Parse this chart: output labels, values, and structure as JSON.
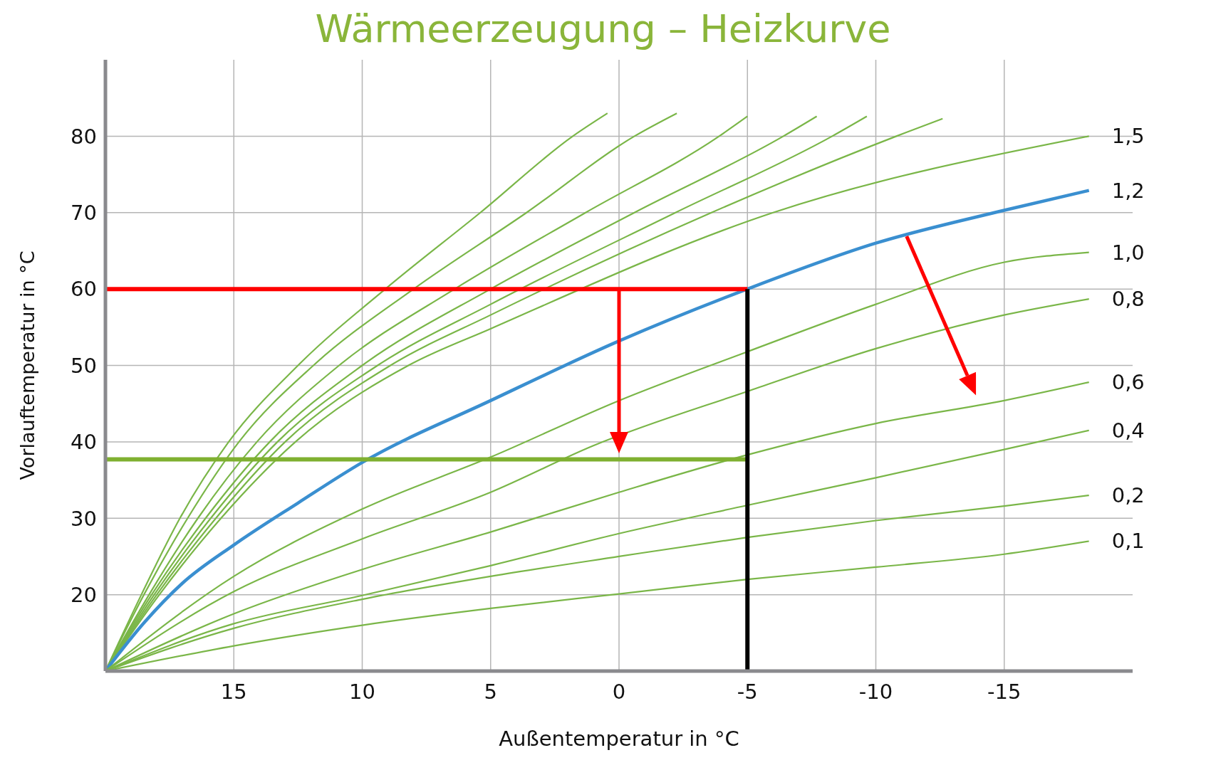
{
  "chart_data": {
    "type": "line",
    "title": "Wärmeerzeugung – Heizkurve",
    "xlabel": "Außentemperatur in °C",
    "ylabel": "Vorlauftemperatur in °C",
    "xlim": [
      20,
      -20
    ],
    "xticks": [
      15,
      10,
      5,
      0,
      -5,
      -10,
      -15
    ],
    "ylim": [
      10,
      90
    ],
    "yticks": [
      20,
      30,
      40,
      50,
      60,
      70,
      80
    ],
    "grid": true,
    "marker": "none",
    "line_style": "solid",
    "series": [
      {
        "color": "#7ab648",
        "x": [
          20,
          18.6,
          17.1,
          15.2,
          12.5,
          9.1,
          5.4,
          1.8,
          0.45
        ],
        "values": [
          10,
          20,
          30,
          40,
          50,
          60,
          70,
          80,
          83
        ]
      },
      {
        "color": "#7ab648",
        "x": [
          20,
          18.5,
          16.8,
          14.8,
          11.9,
          8.0,
          3.6,
          -0.6,
          -2.25
        ],
        "values": [
          10,
          20,
          30,
          40,
          50,
          60,
          70,
          80,
          83
        ]
      },
      {
        "color": "#7ab648",
        "x": [
          20,
          18.3,
          16.4,
          14.1,
          10.9,
          6.4,
          1.3,
          -3.9,
          -5
        ],
        "values": [
          10,
          20,
          30,
          40,
          50,
          60,
          70,
          80,
          82.6
        ]
      },
      {
        "color": "#7ab648",
        "x": [
          20,
          18.2,
          16.1,
          13.6,
          10.0,
          5.0,
          -0.6,
          -6.4,
          -7.7
        ],
        "values": [
          10,
          20,
          30,
          40,
          50,
          60,
          70,
          80,
          82.6
        ]
      },
      {
        "color": "#7ab648",
        "x": [
          20,
          18.1,
          15.9,
          13.3,
          9.4,
          5,
          -2.2,
          -8.3,
          -9.65
        ],
        "values": [
          10,
          20,
          30,
          40,
          50,
          58,
          70,
          80,
          82.6
        ]
      },
      {
        "color": "#7ab648",
        "x": [
          20,
          18.0,
          15.7,
          13.0,
          8.9,
          5,
          -3.6,
          -10.8,
          -12.6
        ],
        "values": [
          10,
          20,
          30,
          40,
          50,
          56.6,
          70,
          80,
          82.3
        ]
      },
      {
        "name": "1,5",
        "color": "#7ab648",
        "x": [
          20,
          17.9,
          15.5,
          12.6,
          8.2,
          5,
          -6.0,
          -18.3
        ],
        "values": [
          10,
          20,
          30,
          40,
          50,
          54.8,
          70,
          80
        ]
      },
      {
        "name": "1,2",
        "color": "#3a8fd0",
        "x": [
          20,
          18.5,
          17,
          15,
          12.5,
          10,
          5,
          0,
          -5,
          -10,
          -15,
          -18.3
        ],
        "values": [
          10,
          16.3,
          21.5,
          26.5,
          32,
          37.3,
          45.4,
          53.2,
          60,
          66,
          70.3,
          72.9
        ]
      },
      {
        "name": "1,0",
        "color": "#7ab648",
        "x": [
          20,
          15,
          10,
          5,
          0,
          -5,
          -10,
          -15,
          -18.3
        ],
        "values": [
          10,
          22.4,
          31.2,
          38,
          45.4,
          51.8,
          58,
          63.5,
          64.8
        ]
      },
      {
        "name": "0,8",
        "color": "#7ab648",
        "x": [
          20,
          15,
          10,
          5,
          1,
          -5,
          -10,
          -15,
          -18.3
        ],
        "values": [
          10,
          20.4,
          27.3,
          33.4,
          39.5,
          46.6,
          52.2,
          56.6,
          58.7
        ]
      },
      {
        "name": "0,6",
        "color": "#7ab648",
        "x": [
          20,
          15,
          10,
          5,
          0,
          -5,
          -10,
          -15,
          -18.3
        ],
        "values": [
          10,
          17.5,
          23.3,
          28.2,
          33.4,
          38.3,
          42.4,
          45.4,
          47.8
        ]
      },
      {
        "name": "0,4",
        "color": "#7ab648",
        "x": [
          20,
          15,
          10,
          5,
          0,
          -5,
          -10,
          -15,
          -18.3
        ],
        "values": [
          10,
          16.2,
          19.9,
          23.8,
          28,
          31.7,
          35.3,
          39,
          41.5
        ]
      },
      {
        "name": "0,2",
        "color": "#7ab648",
        "x": [
          20,
          15,
          10,
          5,
          0,
          -5,
          -10,
          -15,
          -18.3
        ],
        "values": [
          10,
          15.6,
          19.4,
          22.4,
          25,
          27.5,
          29.7,
          31.6,
          33
        ]
      },
      {
        "name": "0,1",
        "color": "#7ab648",
        "x": [
          20,
          15,
          10,
          5,
          0,
          -5,
          -10,
          -15,
          -18.3
        ],
        "values": [
          10,
          13.3,
          16,
          18.2,
          20.1,
          22,
          23.6,
          25.3,
          27
        ]
      },
      {
        "color": "#ff0000",
        "x": [
          20,
          -5
        ],
        "values": [
          60,
          60
        ]
      },
      {
        "color": "#7fb030",
        "x": [
          20,
          -5
        ],
        "values": [
          37.7,
          37.7
        ]
      },
      {
        "color": "#000000",
        "x": [
          -5,
          -5
        ],
        "values": [
          10,
          60
        ]
      }
    ]
  }
}
